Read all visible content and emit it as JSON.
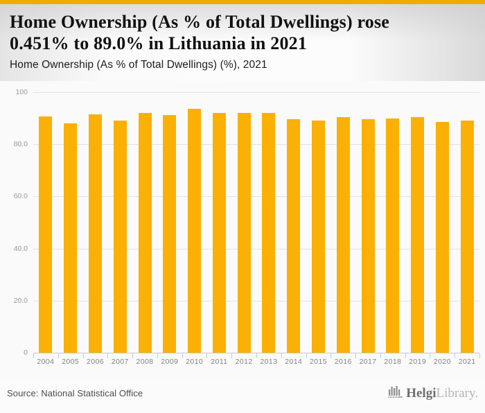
{
  "header": {
    "title_line1": "Home Ownership (As % of Total Dwellings) rose",
    "title_line2": "0.451% to 89.0% in Lithuania in 2021",
    "subtitle": "Home Ownership (As % of Total Dwellings) (%), 2021"
  },
  "chart_data": {
    "type": "bar",
    "title": "Home Ownership (As % of Total Dwellings) (%), 2021",
    "categories": [
      "2004",
      "2005",
      "2006",
      "2007",
      "2008",
      "2009",
      "2010",
      "2011",
      "2012",
      "2013",
      "2014",
      "2015",
      "2016",
      "2017",
      "2018",
      "2019",
      "2020",
      "2021"
    ],
    "values": [
      90.8,
      88.0,
      91.5,
      89.1,
      92.0,
      91.2,
      93.6,
      92.1,
      91.9,
      92.0,
      89.6,
      89.2,
      90.3,
      89.6,
      89.9,
      90.3,
      88.6,
      89.0
    ],
    "xlabel": "",
    "ylabel": "",
    "ylim": [
      0,
      100
    ],
    "yticks": [
      100,
      80,
      60,
      40,
      20,
      0
    ],
    "ytick_labels": [
      "100",
      "80.0",
      "60.0",
      "40.0",
      "20.0",
      "0"
    ],
    "grid": true,
    "legend_position": "none",
    "bar_color": "#FAB005"
  },
  "footer": {
    "source": "Source: National Statistical Office",
    "logo": {
      "brand_bold": "Helgi",
      "brand_light": "Library."
    }
  },
  "colors": {
    "accent_bar": "#F2A900",
    "bar": "#FAB005",
    "axis": "#C5CBDF",
    "gridline": "#E2E2E2",
    "plot_background": "#FAFAFA"
  }
}
